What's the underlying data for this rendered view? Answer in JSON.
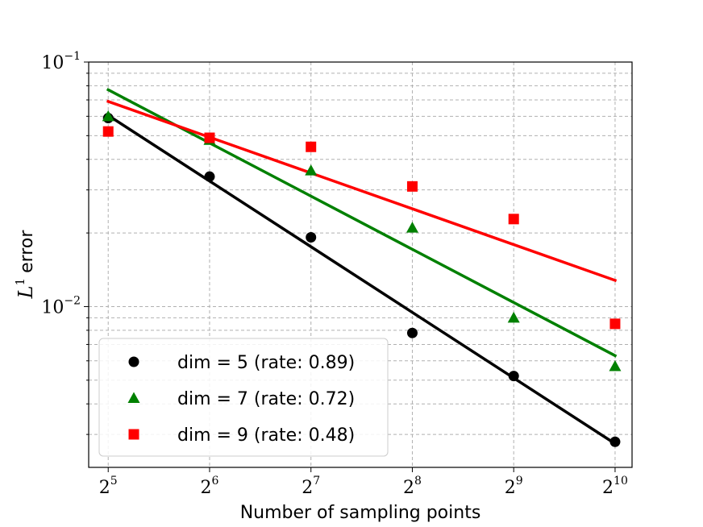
{
  "chart_data": {
    "type": "scatter",
    "title": "",
    "xlabel": "Number of sampling points",
    "ylabel": "L^1 error",
    "ylabel_base": "L",
    "ylabel_sup": "1",
    "ylabel_suffix": "error",
    "x_scale": "log2",
    "y_scale": "log10",
    "xlim": [
      28,
      1150
    ],
    "ylim": [
      0.0022,
      0.1
    ],
    "x_ticks": [
      {
        "value": 32,
        "base": "2",
        "exp": "5"
      },
      {
        "value": 64,
        "base": "2",
        "exp": "6"
      },
      {
        "value": 128,
        "base": "2",
        "exp": "7"
      },
      {
        "value": 256,
        "base": "2",
        "exp": "8"
      },
      {
        "value": 512,
        "base": "2",
        "exp": "9"
      },
      {
        "value": 1024,
        "base": "2",
        "exp": "10"
      }
    ],
    "y_ticks": [
      {
        "value": 0.1,
        "base": "10",
        "exp": "−1"
      },
      {
        "value": 0.01,
        "base": "10",
        "exp": "−2"
      }
    ],
    "grid": true,
    "legend_position": "lower-left",
    "series": [
      {
        "name": "dim = 5 (rate: 0.89)",
        "color": "#000000",
        "marker": "circle",
        "x": [
          32,
          64,
          128,
          256,
          512,
          1024
        ],
        "y": [
          0.059,
          0.034,
          0.0192,
          0.0078,
          0.0052,
          0.0028
        ],
        "fit_y_start": 0.0605,
        "fit_y_end": 0.00275
      },
      {
        "name": "dim = 7 (rate: 0.72)",
        "color": "#008000",
        "marker": "triangle",
        "x": [
          32,
          64,
          128,
          256,
          512,
          1024
        ],
        "y": [
          0.06,
          0.048,
          0.036,
          0.021,
          0.009,
          0.0057
        ],
        "fit_y_start": 0.077,
        "fit_y_end": 0.0063
      },
      {
        "name": "dim = 9 (rate: 0.48)",
        "color": "#ff0000",
        "marker": "square",
        "x": [
          32,
          64,
          128,
          256,
          512,
          1024
        ],
        "y": [
          0.052,
          0.049,
          0.045,
          0.031,
          0.0228,
          0.0085
        ],
        "fit_y_start": 0.069,
        "fit_y_end": 0.0128
      }
    ]
  }
}
